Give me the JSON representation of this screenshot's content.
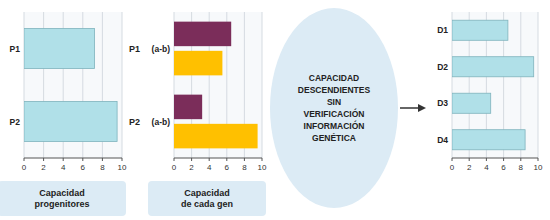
{
  "chart_data": [
    {
      "type": "bar",
      "orientation": "horizontal",
      "title": "Capacidad\nprogenitores",
      "categories": [
        "P1",
        "P2"
      ],
      "values": [
        7.2,
        9.5
      ],
      "color": "#B0E0E8",
      "xlim": [
        0,
        10
      ],
      "xticks": [
        0,
        2,
        4,
        6,
        8,
        10
      ],
      "grid": true
    },
    {
      "type": "bar",
      "orientation": "horizontal",
      "title": "Capacidad\nde cada gen",
      "categories": [
        "(a-b)",
        "(a-b)"
      ],
      "series": [
        {
          "color": "#7B2D5A",
          "values": [
            6.5,
            3.2
          ]
        },
        {
          "color": "#FFC000",
          "values": [
            5.5,
            9.5
          ]
        }
      ],
      "annotations": [
        "P1",
        "P2"
      ],
      "xlim": [
        0,
        10
      ],
      "xticks": [
        0,
        2,
        4,
        6,
        8,
        10
      ],
      "grid": true
    },
    {
      "type": "bar",
      "orientation": "horizontal",
      "categories": [
        "D1",
        "D2",
        "D3",
        "D4"
      ],
      "values": [
        6.5,
        9.5,
        4.5,
        8.5
      ],
      "color": "#B0E0E8",
      "xlim": [
        0,
        10
      ],
      "xticks": [
        0,
        2,
        4,
        6,
        8,
        10
      ],
      "grid": true,
      "annotations": [
        "CAPACIDAD\nDESCENDIENTES\nSIN\nVERIFICACIÓN\nINFORMACIÓN\nGENÉTICA"
      ]
    }
  ]
}
